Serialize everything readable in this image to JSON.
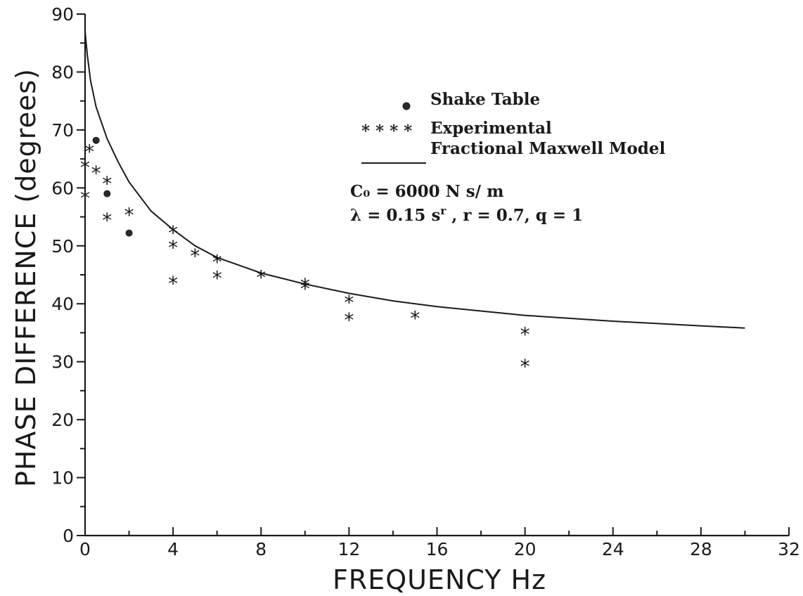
{
  "chart_data": {
    "type": "scatter",
    "xlabel": "FREQUENCY Hz",
    "ylabel": "PHASE DIFFERENCE (degrees)",
    "xlim": [
      0,
      32
    ],
    "ylim": [
      0,
      90
    ],
    "x_ticks": [
      0,
      4,
      8,
      12,
      16,
      20,
      24,
      28,
      32
    ],
    "y_ticks": [
      0,
      10,
      20,
      30,
      40,
      50,
      60,
      70,
      80,
      90
    ],
    "grid": false,
    "legend_position": "top-right",
    "series": [
      {
        "name": "Shake Table",
        "marker": "filled-circle",
        "points": [
          [
            0.5,
            68.2
          ],
          [
            1.0,
            59.0
          ],
          [
            2.0,
            52.2
          ]
        ]
      },
      {
        "name": "Experimental",
        "marker": "asterisk",
        "points": [
          [
            0.2,
            66.5
          ],
          [
            0.0,
            63.8
          ],
          [
            0.5,
            62.8
          ],
          [
            0.0,
            58.5
          ],
          [
            1.0,
            61.0
          ],
          [
            1.0,
            54.7
          ],
          [
            2.0,
            55.6
          ],
          [
            4.0,
            52.5
          ],
          [
            4.0,
            50.0
          ],
          [
            4.0,
            43.8
          ],
          [
            5.0,
            48.5
          ],
          [
            6.0,
            47.5
          ],
          [
            6.0,
            44.7
          ],
          [
            8.0,
            44.8
          ],
          [
            10.0,
            43.4
          ],
          [
            10.0,
            42.9
          ],
          [
            12.0,
            40.5
          ],
          [
            12.0,
            37.5
          ],
          [
            15.0,
            37.8
          ],
          [
            20.0,
            35.0
          ],
          [
            20.0,
            29.5
          ]
        ]
      },
      {
        "name": "Fractional Maxwell Model",
        "marker": "line",
        "points": [
          [
            0.0,
            87.0
          ],
          [
            0.1,
            83.0
          ],
          [
            0.25,
            78.5
          ],
          [
            0.5,
            74.0
          ],
          [
            1.0,
            68.5
          ],
          [
            1.5,
            64.5
          ],
          [
            2.0,
            61.0
          ],
          [
            3.0,
            56.0
          ],
          [
            4.0,
            52.8
          ],
          [
            5.0,
            50.0
          ],
          [
            6.0,
            48.0
          ],
          [
            8.0,
            45.3
          ],
          [
            10.0,
            43.4
          ],
          [
            12.0,
            41.8
          ],
          [
            14.0,
            40.5
          ],
          [
            16.0,
            39.5
          ],
          [
            20.0,
            38.0
          ],
          [
            24.0,
            37.0
          ],
          [
            28.0,
            36.2
          ],
          [
            30.0,
            35.8
          ]
        ]
      }
    ],
    "annotations": {
      "c0_line": "C₀ = 6000  N s/ m",
      "lambda_prefix": "λ  =  0.15 s",
      "lambda_exponent": "r",
      "lambda_suffix": " , r = 0.7, q = 1"
    },
    "legend_symbols": {
      "shake_table": "●",
      "experimental": "* * * *"
    }
  }
}
